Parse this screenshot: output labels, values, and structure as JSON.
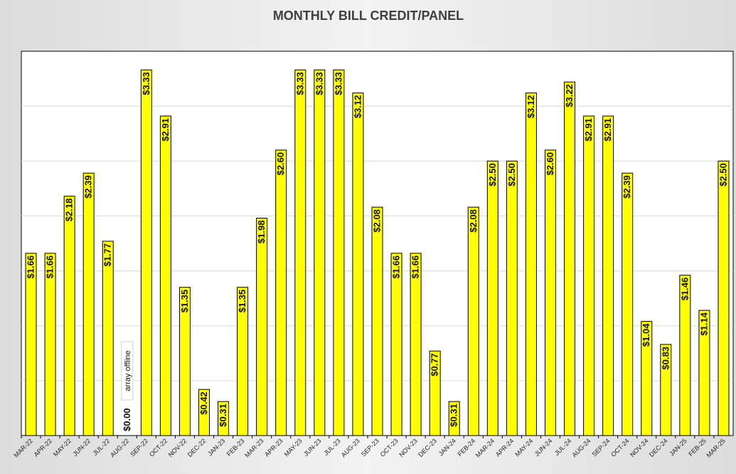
{
  "chart_data": {
    "type": "bar",
    "title": "MONTHLY BILL CREDIT/PANEL",
    "xlabel": "",
    "ylabel": "",
    "ylim": [
      0,
      3.5
    ],
    "grid": true,
    "bar_color": "#FFFF00",
    "categories": [
      "MAR-22",
      "APR-22",
      "MAY-22",
      "JUN-22",
      "JUL-22",
      "AUG-22",
      "SEP-22",
      "OCT-22",
      "NOV-22",
      "DEC-22",
      "JAN-23",
      "FEB-23",
      "MAR-23",
      "APR-23",
      "MAY-23",
      "JUN-23",
      "JUL-23",
      "AUG-23",
      "SEP-23",
      "OCT-23",
      "NOV-23",
      "DEC-23",
      "JAN-24",
      "FEB-24",
      "MAR-24",
      "APR-24",
      "MAY-24",
      "JUN-24",
      "JUL-24",
      "AUG-24",
      "SEP-24",
      "OCT-24",
      "NOV-24",
      "DEC-24",
      "JAN-25",
      "FEB-25",
      "MAR-25"
    ],
    "values": [
      1.66,
      1.66,
      2.18,
      2.39,
      1.77,
      0.0,
      3.33,
      2.91,
      1.35,
      0.42,
      0.31,
      1.35,
      1.98,
      2.6,
      3.33,
      3.33,
      3.33,
      3.12,
      2.08,
      1.66,
      1.66,
      0.77,
      0.31,
      2.08,
      2.5,
      2.5,
      3.12,
      2.6,
      3.22,
      2.91,
      2.91,
      2.39,
      1.04,
      0.83,
      1.46,
      1.14,
      2.5
    ],
    "data_labels": [
      "$1.66",
      "$1.66",
      "$2.18",
      "$2.39",
      "$1.77",
      "$0.00",
      "$3.33",
      "$2.91",
      "$1.35",
      "$0.42",
      "$0.31",
      "$1.35",
      "$1.98",
      "$2.60",
      "$3.33",
      "$3.33",
      "$3.33",
      "$3.12",
      "$2.08",
      "$1.66",
      "$1.66",
      "$0.77",
      "$0.31",
      "$2.08",
      "$2.50",
      "$2.50",
      "$3.12",
      "$2.60",
      "$3.22",
      "$2.91",
      "$2.91",
      "$2.39",
      "$1.04",
      "$0.83",
      "$1.46",
      "$1.14",
      "$2.50"
    ],
    "annotations": [
      {
        "category": "AUG-22",
        "text": "array offline"
      }
    ]
  }
}
